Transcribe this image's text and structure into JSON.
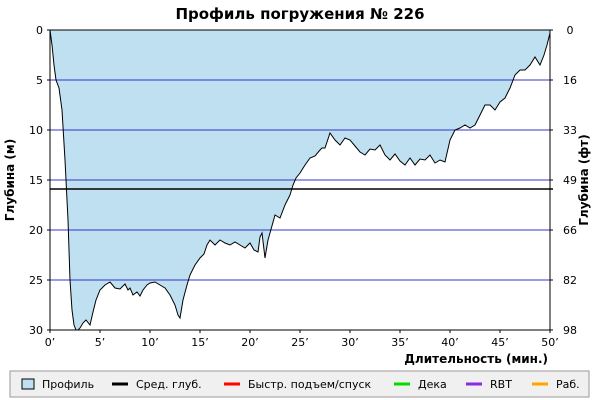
{
  "chart_data": {
    "type": "area",
    "title": "Профиль погружения № 226",
    "xlabel": "Длительность (мин.)",
    "ylabel_left": "Глубина (м)",
    "ylabel_right": "Глубина (фт)",
    "xlim": [
      0,
      50
    ],
    "ylim": [
      0,
      30
    ],
    "y_inverted": true,
    "x_ticks": [
      0,
      5,
      10,
      15,
      20,
      25,
      30,
      35,
      40,
      45,
      50
    ],
    "x_tick_labels": [
      "0’",
      "5’",
      "10’",
      "15’",
      "20’",
      "25’",
      "30’",
      "35’",
      "40’",
      "45’",
      "50’"
    ],
    "y_ticks_left": [
      0,
      5,
      10,
      15,
      20,
      25,
      30
    ],
    "y_ticks_right": [
      0,
      16,
      33,
      49,
      66,
      82,
      98
    ],
    "grid_lines_depth": [
      5,
      10,
      15,
      20,
      25
    ],
    "colors": {
      "profile_fill": "#bfe0f0",
      "profile_line": "#000000",
      "avg_depth": "#000000",
      "fast_ascent": "#ff0000",
      "deco": "#00dd00",
      "rbt": "#8a2be2",
      "work": "#ffa500",
      "grid": "#3333cc"
    },
    "avg_depth": 15.9,
    "series": [
      {
        "name": "Профиль",
        "x": [
          0.0,
          0.2,
          0.4,
          0.6,
          0.9,
          1.2,
          1.5,
          1.8,
          2.0,
          2.2,
          2.4,
          2.6,
          2.8,
          3.0,
          3.3,
          3.6,
          4.0,
          4.3,
          4.6,
          5.0,
          5.5,
          6.0,
          6.5,
          7.0,
          7.5,
          7.8,
          8.0,
          8.3,
          8.7,
          9.0,
          9.3,
          9.7,
          10.0,
          10.5,
          11.0,
          11.5,
          12.0,
          12.5,
          12.8,
          13.0,
          13.3,
          13.7,
          14.0,
          14.5,
          15.0,
          15.4,
          15.7,
          16.0,
          16.5,
          17.0,
          17.5,
          18.0,
          18.5,
          19.0,
          19.5,
          20.0,
          20.4,
          20.8,
          21.0,
          21.2,
          21.5,
          21.8,
          22.0,
          22.5,
          23.0,
          23.5,
          24.0,
          24.3,
          24.6,
          25.0,
          25.5,
          26.0,
          26.5,
          27.0,
          27.2,
          27.5,
          28.0,
          28.5,
          29.0,
          29.5,
          30.0,
          30.5,
          31.0,
          31.5,
          32.0,
          32.5,
          33.0,
          33.5,
          34.0,
          34.5,
          35.0,
          35.5,
          36.0,
          36.5,
          37.0,
          37.5,
          38.0,
          38.5,
          39.0,
          39.5,
          40.0,
          40.5,
          41.0,
          41.5,
          42.0,
          42.5,
          43.0,
          43.5,
          44.0,
          44.5,
          45.0,
          45.5,
          46.0,
          46.5,
          47.0,
          47.5,
          48.0,
          48.5,
          49.0,
          49.4,
          49.7,
          50.0
        ],
        "y": [
          0.0,
          1.5,
          3.5,
          5.0,
          5.8,
          8.0,
          13.0,
          19.0,
          25.0,
          28.0,
          29.5,
          30.0,
          30.0,
          29.8,
          29.3,
          29.0,
          29.5,
          28.2,
          27.0,
          26.0,
          25.5,
          25.2,
          25.8,
          25.9,
          25.4,
          26.0,
          25.8,
          26.5,
          26.2,
          26.6,
          26.0,
          25.5,
          25.3,
          25.2,
          25.5,
          25.8,
          26.5,
          27.5,
          28.5,
          28.8,
          27.0,
          25.5,
          24.5,
          23.5,
          22.8,
          22.4,
          21.5,
          21.0,
          21.5,
          21.0,
          21.3,
          21.5,
          21.2,
          21.5,
          21.8,
          21.3,
          22.0,
          22.2,
          20.7,
          20.3,
          22.8,
          21.0,
          20.3,
          18.5,
          18.8,
          17.5,
          16.5,
          15.5,
          14.8,
          14.3,
          13.5,
          12.8,
          12.6,
          12.0,
          11.8,
          11.8,
          10.3,
          11.0,
          11.5,
          10.8,
          11.0,
          11.6,
          12.2,
          12.5,
          11.9,
          12.0,
          11.5,
          12.5,
          13.0,
          12.4,
          13.1,
          13.5,
          12.8,
          13.5,
          12.9,
          13.0,
          12.5,
          13.3,
          13.0,
          13.2,
          11.0,
          10.0,
          9.8,
          9.5,
          9.8,
          9.5,
          8.5,
          7.5,
          7.5,
          8.0,
          7.2,
          6.8,
          5.8,
          4.5,
          4.0,
          4.0,
          3.5,
          2.7,
          3.5,
          2.5,
          1.5,
          0.3
        ]
      }
    ],
    "legend": {
      "placement": "bottom",
      "items": [
        {
          "label": "Профиль",
          "kind": "box",
          "color": "#bfe0f0"
        },
        {
          "label": "Сред. глуб.",
          "kind": "line",
          "color": "#000000"
        },
        {
          "label": "Быстр. подъем/спуск",
          "kind": "line",
          "color": "#ff0000"
        },
        {
          "label": "Дека",
          "kind": "line",
          "color": "#00dd00"
        },
        {
          "label": "RBT",
          "kind": "line",
          "color": "#8a2be2"
        },
        {
          "label": "Раб.",
          "kind": "line",
          "color": "#ffa500"
        }
      ]
    }
  }
}
